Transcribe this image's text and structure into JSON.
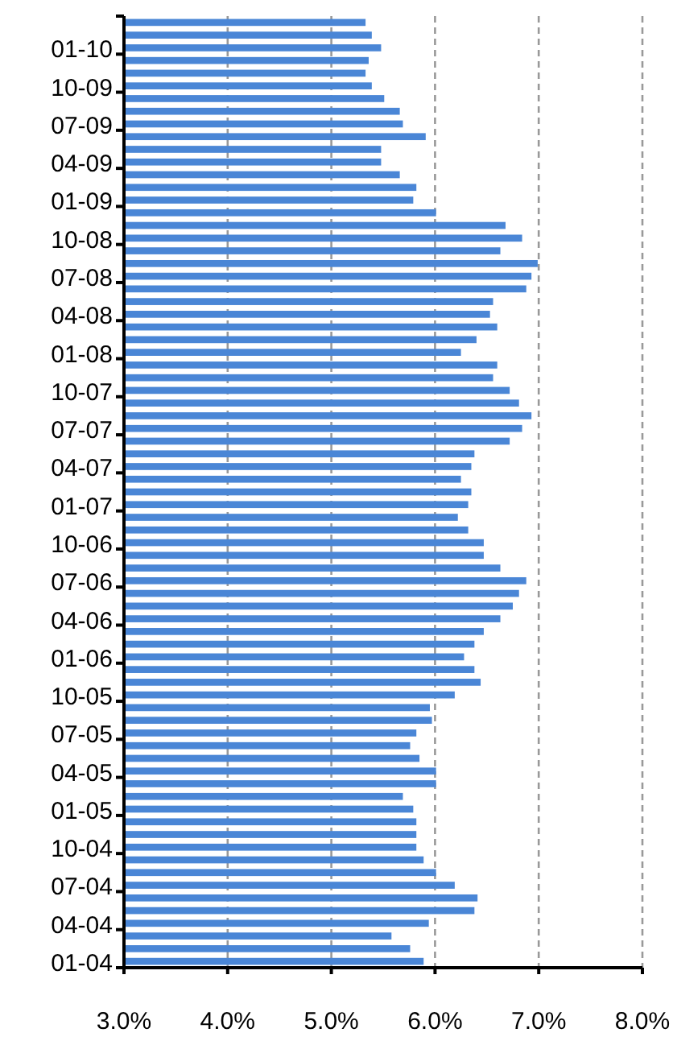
{
  "chart_data": {
    "type": "bar",
    "orientation": "horizontal",
    "categories": [
      null,
      null,
      "01-10",
      null,
      null,
      "10-09",
      null,
      null,
      "07-09",
      null,
      null,
      "04-09",
      null,
      null,
      "01-09",
      null,
      null,
      "10-08",
      null,
      null,
      "07-08",
      null,
      null,
      "04-08",
      null,
      null,
      "01-08",
      null,
      null,
      "10-07",
      null,
      null,
      "07-07",
      null,
      null,
      "04-07",
      null,
      null,
      "01-07",
      null,
      null,
      "10-06",
      null,
      null,
      "07-06",
      null,
      null,
      "04-06",
      null,
      null,
      "01-06",
      null,
      null,
      "10-05",
      null,
      null,
      "07-05",
      null,
      null,
      "04-05",
      null,
      null,
      "01-05",
      null,
      null,
      "10-04",
      null,
      null,
      "07-04",
      null,
      null,
      "04-04",
      null,
      null,
      "01-04"
    ],
    "values": [
      5.33,
      5.39,
      5.48,
      5.36,
      5.33,
      5.39,
      5.51,
      5.66,
      5.69,
      5.91,
      5.48,
      5.48,
      5.66,
      5.82,
      5.79,
      6.01,
      6.68,
      6.84,
      6.63,
      6.99,
      6.93,
      6.88,
      6.56,
      6.53,
      6.6,
      6.4,
      6.25,
      6.6,
      6.56,
      6.72,
      6.81,
      6.93,
      6.84,
      6.72,
      6.38,
      6.35,
      6.25,
      6.35,
      6.32,
      6.22,
      6.32,
      6.47,
      6.47,
      6.63,
      6.88,
      6.81,
      6.75,
      6.63,
      6.47,
      6.38,
      6.28,
      6.38,
      6.44,
      6.19,
      5.95,
      5.97,
      5.82,
      5.76,
      5.85,
      6.01,
      6.01,
      5.69,
      5.79,
      5.82,
      5.82,
      5.82,
      5.89,
      6.01,
      6.19,
      6.41,
      6.38,
      5.94,
      5.58,
      5.76,
      5.89
    ],
    "color": "#4a86d6",
    "xlim": [
      3,
      8
    ],
    "xticks": [
      {
        "value": 3,
        "label": "3.0%"
      },
      {
        "value": 4,
        "label": "4.0%"
      },
      {
        "value": 5,
        "label": "5.0%"
      },
      {
        "value": 6,
        "label": "6.0%"
      },
      {
        "value": 7,
        "label": "7.0%"
      },
      {
        "value": 8,
        "label": "8.0%"
      }
    ],
    "grid": "x"
  }
}
